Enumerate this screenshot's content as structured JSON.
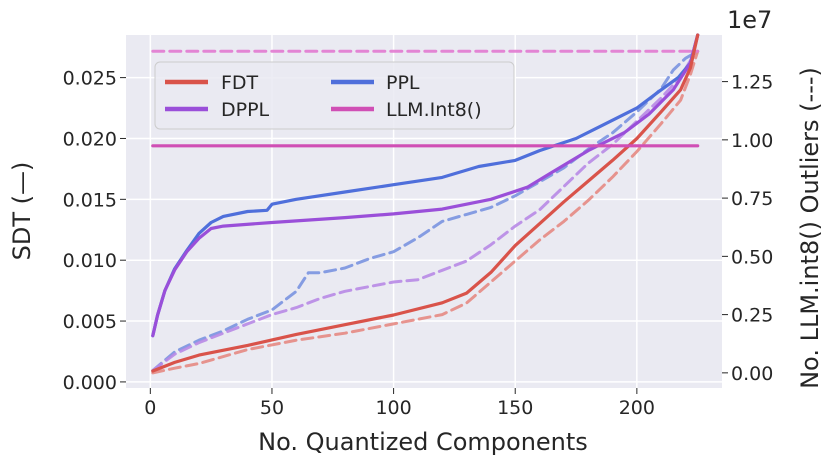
{
  "chart_data": {
    "type": "line",
    "xlabel": "No. Quantized Components",
    "ylabel": "SDT (—)",
    "y2label": "No. LLM.int8() Outliers (---)",
    "y2_offset_label": "1e7",
    "xlim": [
      -10,
      235
    ],
    "ylim": [
      -0.0005,
      0.0285
    ],
    "y2lim": [
      -0.065,
      1.45
    ],
    "x_ticks": [
      0,
      50,
      100,
      150,
      200
    ],
    "y_ticks": [
      0.0,
      0.005,
      0.01,
      0.015,
      0.02,
      0.025
    ],
    "y_tick_labels": [
      "0.000",
      "0.005",
      "0.010",
      "0.015",
      "0.020",
      "0.025"
    ],
    "y2_ticks": [
      0.0,
      0.25,
      0.5,
      0.75,
      1.0,
      1.25
    ],
    "y2_tick_labels": [
      "0.00",
      "0.25",
      "0.50",
      "0.75",
      "1.00",
      "1.25"
    ],
    "background": "#eaeaf2",
    "grid": true,
    "legend": {
      "placement": "top-left",
      "columns": 2,
      "entries": [
        {
          "label": "FDT",
          "color": "#d9534a"
        },
        {
          "label": "PPL",
          "color": "#4f6fdb"
        },
        {
          "label": "DPPL",
          "color": "#9a4fd9"
        },
        {
          "label": "LLM.Int8()",
          "color": "#d04fb5"
        }
      ]
    },
    "series": [
      {
        "name": "PPL",
        "axis": "left",
        "style": "solid",
        "color": "#4f6fdb",
        "x": [
          1,
          3,
          6,
          10,
          15,
          20,
          25,
          30,
          40,
          48,
          50,
          60,
          80,
          100,
          120,
          135,
          150,
          160,
          175,
          185,
          200,
          210,
          217,
          222,
          225
        ],
        "y": [
          0.0038,
          0.0055,
          0.0075,
          0.0093,
          0.0108,
          0.0122,
          0.0131,
          0.0136,
          0.014,
          0.0141,
          0.0146,
          0.015,
          0.0156,
          0.0162,
          0.0168,
          0.0177,
          0.0182,
          0.019,
          0.02,
          0.021,
          0.0225,
          0.024,
          0.025,
          0.0262,
          0.0285
        ]
      },
      {
        "name": "DPPL",
        "axis": "left",
        "style": "solid",
        "color": "#9a4fd9",
        "x": [
          1,
          3,
          6,
          10,
          15,
          20,
          25,
          30,
          50,
          80,
          100,
          120,
          140,
          155,
          165,
          180,
          195,
          205,
          215,
          222,
          225
        ],
        "y": [
          0.0038,
          0.0055,
          0.0075,
          0.0092,
          0.0107,
          0.0118,
          0.0126,
          0.0128,
          0.0131,
          0.0135,
          0.0138,
          0.0142,
          0.015,
          0.016,
          0.0172,
          0.019,
          0.0205,
          0.022,
          0.024,
          0.0262,
          0.0285
        ]
      },
      {
        "name": "FDT",
        "axis": "left",
        "style": "solid",
        "color": "#d9534a",
        "x": [
          1,
          10,
          20,
          40,
          60,
          80,
          100,
          120,
          130,
          140,
          150,
          160,
          170,
          180,
          190,
          200,
          210,
          218,
          222,
          225
        ],
        "y": [
          0.0009,
          0.0016,
          0.0022,
          0.003,
          0.0039,
          0.0047,
          0.0055,
          0.0065,
          0.0073,
          0.009,
          0.0112,
          0.013,
          0.0148,
          0.0165,
          0.0182,
          0.02,
          0.0222,
          0.024,
          0.0258,
          0.0285
        ]
      },
      {
        "name": "LLM.Int8()",
        "axis": "left",
        "style": "solid",
        "color": "#d04fb5",
        "x": [
          1,
          225
        ],
        "y": [
          0.0194,
          0.0194
        ]
      },
      {
        "name": "PPL",
        "axis": "right",
        "style": "dashed",
        "color": "#7a93e0",
        "x": [
          1,
          10,
          20,
          30,
          40,
          50,
          60,
          65,
          70,
          80,
          90,
          100,
          110,
          120,
          130,
          140,
          150,
          160,
          170,
          180,
          190,
          200,
          210,
          215,
          220,
          225
        ],
        "y": [
          0.01,
          0.09,
          0.14,
          0.18,
          0.23,
          0.27,
          0.35,
          0.43,
          0.43,
          0.45,
          0.49,
          0.52,
          0.58,
          0.65,
          0.68,
          0.71,
          0.76,
          0.82,
          0.88,
          0.96,
          1.03,
          1.12,
          1.22,
          1.3,
          1.35,
          1.38
        ]
      },
      {
        "name": "DPPL",
        "axis": "right",
        "style": "dashed",
        "color": "#b88ae6",
        "x": [
          1,
          10,
          20,
          30,
          40,
          50,
          60,
          70,
          80,
          90,
          100,
          110,
          120,
          130,
          140,
          150,
          160,
          170,
          180,
          190,
          200,
          210,
          218,
          222,
          225
        ],
        "y": [
          0.01,
          0.08,
          0.13,
          0.17,
          0.21,
          0.25,
          0.28,
          0.32,
          0.35,
          0.37,
          0.39,
          0.4,
          0.44,
          0.48,
          0.55,
          0.63,
          0.7,
          0.8,
          0.9,
          0.98,
          1.08,
          1.18,
          1.27,
          1.34,
          1.38
        ]
      },
      {
        "name": "FDT",
        "axis": "right",
        "style": "dashed",
        "color": "#e58a83",
        "x": [
          1,
          10,
          20,
          40,
          60,
          80,
          100,
          120,
          130,
          140,
          150,
          160,
          170,
          180,
          190,
          200,
          210,
          218,
          222,
          225
        ],
        "y": [
          0.0,
          0.02,
          0.04,
          0.1,
          0.14,
          0.17,
          0.21,
          0.25,
          0.3,
          0.39,
          0.48,
          0.57,
          0.65,
          0.74,
          0.84,
          0.95,
          1.07,
          1.17,
          1.28,
          1.38
        ]
      },
      {
        "name": "LLM.Int8()",
        "axis": "right",
        "style": "dashed",
        "color": "#e27ad0",
        "x": [
          1,
          225
        ],
        "y": [
          1.38,
          1.38
        ]
      }
    ]
  }
}
